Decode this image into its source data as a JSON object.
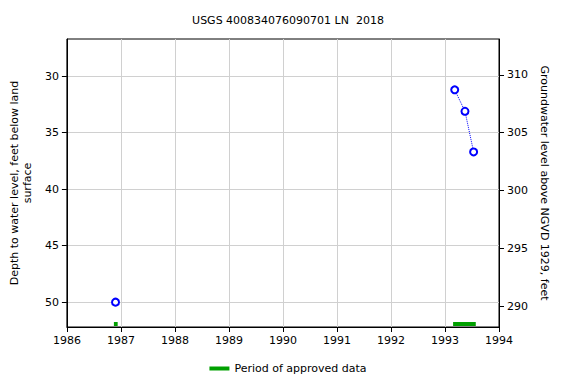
{
  "chart_data": {
    "type": "scatter",
    "title": "USGS 400834076090701 LN  2018",
    "y_label": "Depth to water level, feet below land\nsurface",
    "y2_label": "Groundwater level above NGVD 1929, feet",
    "xlim": [
      1986,
      1994
    ],
    "xticks": [
      1986,
      1987,
      1988,
      1989,
      1990,
      1991,
      1992,
      1993,
      1994
    ],
    "ylim": [
      26.7,
      52.2
    ],
    "yticks": [
      30,
      35,
      40,
      45,
      50
    ],
    "y2lim": [
      288.2,
      313.1
    ],
    "y2ticks": [
      290,
      295,
      300,
      305,
      310
    ],
    "grid": true,
    "legend": "bottom",
    "series": [
      {
        "type": "scatter",
        "color": "#0000ff",
        "marker": "circle",
        "x": [
          1986.9
        ],
        "values": [
          50.0
        ]
      },
      {
        "type": "line",
        "color": "#0000ff",
        "marker": "circle",
        "line_style": "dotted",
        "x": [
          1993.18,
          1993.37,
          1993.53
        ],
        "values": [
          31.2,
          33.1,
          36.7
        ]
      },
      {
        "type": "period",
        "name": "Period of approved data",
        "color": "#00a000",
        "periods": [
          [
            1986.87,
            1986.94
          ],
          [
            1993.15,
            1993.57
          ]
        ]
      }
    ]
  }
}
